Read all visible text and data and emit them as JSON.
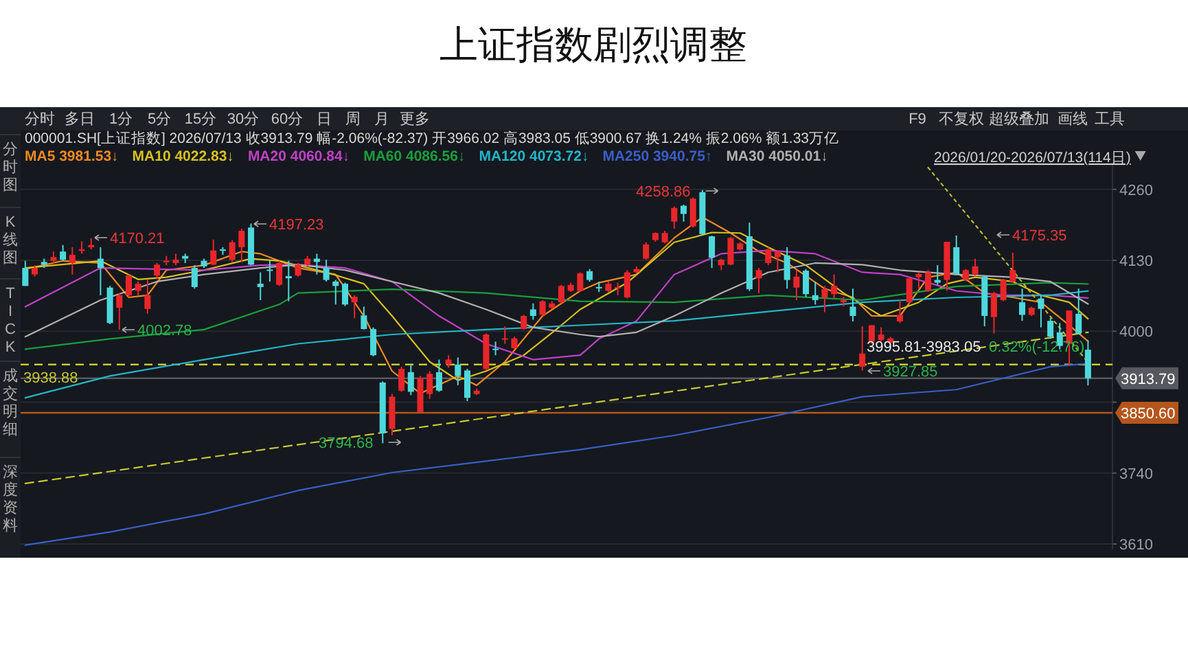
{
  "chart_data": {
    "type": "candlestick",
    "title": "上证指数剧烈调整",
    "categories": [
      null,
      null,
      null,
      null,
      null,
      null,
      null,
      null,
      null,
      null,
      null,
      null,
      null,
      null,
      null,
      null,
      null,
      null,
      null,
      null,
      null,
      null,
      null,
      null,
      null,
      null,
      null,
      null,
      null,
      null,
      null,
      null,
      null,
      null,
      null,
      null,
      null,
      null,
      null,
      null,
      null,
      null,
      null,
      null,
      null,
      null,
      null,
      null,
      null,
      null,
      null,
      null,
      null,
      null,
      null,
      null,
      null,
      null,
      null,
      null,
      null,
      null,
      null,
      null,
      null,
      null,
      null,
      null,
      null,
      null,
      null,
      null,
      null,
      null,
      null,
      null,
      null,
      null,
      null,
      null,
      null,
      null,
      null,
      null,
      null,
      null,
      null,
      null,
      null,
      null,
      null,
      null,
      null,
      null,
      null,
      null,
      null,
      null,
      null,
      null,
      null,
      null,
      null,
      null,
      null,
      null,
      null,
      null,
      null,
      null,
      null,
      null,
      null,
      null
    ],
    "ohlc": [
      [
        4116,
        4129,
        4083,
        4083
      ],
      [
        4104,
        4121,
        4100,
        4116
      ],
      [
        4127,
        4133,
        4116,
        4122
      ],
      [
        4129,
        4146,
        4125,
        4136
      ],
      [
        4146,
        4158,
        4129,
        4131
      ],
      [
        4125,
        4154,
        4104,
        4140
      ],
      [
        4148,
        4165,
        4142,
        4150
      ],
      [
        4154,
        4170.21,
        4150,
        4158
      ],
      [
        4133,
        4154,
        4066,
        4116
      ],
      [
        4080,
        4083,
        4013,
        4015
      ],
      [
        4043,
        4070,
        4002.78,
        4066
      ],
      [
        4066,
        4104,
        4062,
        4102
      ],
      [
        4074,
        4091,
        4066,
        4087
      ],
      [
        4041,
        4094,
        4032,
        4066
      ],
      [
        4102,
        4125,
        4095,
        4122
      ],
      [
        4127,
        4138,
        4121,
        4129
      ],
      [
        4125,
        4142,
        4121,
        4131
      ],
      [
        4138,
        4142,
        4125,
        4133
      ],
      [
        4116,
        4121,
        4078,
        4081
      ],
      [
        4129,
        4133,
        4116,
        4119
      ],
      [
        4122,
        4168,
        4121,
        4148
      ],
      [
        4150,
        4154,
        4140,
        4148
      ],
      [
        4131,
        4167,
        4127,
        4163
      ],
      [
        4154,
        4188,
        4127,
        4184
      ],
      [
        4190,
        4197.23,
        4121,
        4122
      ],
      [
        4087,
        4108,
        4057,
        4081
      ],
      [
        4113,
        4129,
        4091,
        4112
      ],
      [
        4085,
        4129,
        4083,
        4125
      ],
      [
        4101,
        4129,
        4055,
        4097
      ],
      [
        4102,
        4125,
        4100,
        4122
      ],
      [
        4122,
        4138,
        4119,
        4133
      ],
      [
        4133,
        4142,
        4104,
        4127
      ],
      [
        4116,
        4131,
        4091,
        4094
      ],
      [
        4091,
        4094,
        4049,
        4083
      ],
      [
        4087,
        4089,
        4046,
        4049
      ],
      [
        4053,
        4066,
        4024,
        4063
      ],
      [
        4029,
        4045,
        4003,
        4004
      ],
      [
        4004,
        4007,
        3954,
        3956
      ],
      [
        3906,
        3908,
        3794.68,
        3813
      ],
      [
        3821,
        3885,
        3809,
        3880
      ],
      [
        3891,
        3935,
        3889,
        3931
      ],
      [
        3925,
        3939,
        3883,
        3889
      ],
      [
        3852,
        3918,
        3851,
        3914
      ],
      [
        3885,
        3927,
        3876,
        3922
      ],
      [
        3925,
        3948,
        3889,
        3891
      ],
      [
        3939,
        3956,
        3933,
        3948
      ],
      [
        3939,
        3952,
        3901,
        3918
      ],
      [
        3928,
        3931,
        3872,
        3878
      ],
      [
        3885,
        3895,
        3883,
        3891
      ],
      [
        3931,
        3996,
        3928,
        3994
      ],
      [
        3968,
        3981,
        3956,
        3967
      ],
      [
        3985,
        4009,
        3977,
        3987
      ],
      [
        3969,
        3990,
        3967,
        3987
      ],
      [
        4004,
        4030,
        4003,
        4028
      ],
      [
        4040,
        4051,
        4021,
        4028
      ],
      [
        4030,
        4057,
        4028,
        4055
      ],
      [
        4043,
        4055,
        4040,
        4051
      ],
      [
        4053,
        4085,
        4051,
        4083
      ],
      [
        4074,
        4089,
        4072,
        4085
      ],
      [
        4074,
        4108,
        4072,
        4106
      ],
      [
        4110,
        4114,
        4091,
        4094
      ],
      [
        4081,
        4091,
        4072,
        4080
      ],
      [
        4074,
        4091,
        4072,
        4087
      ],
      [
        4079,
        4089,
        4066,
        4081
      ],
      [
        4062,
        4112,
        4060,
        4108
      ],
      [
        4108,
        4119,
        4106,
        4114
      ],
      [
        4133,
        4163,
        4131,
        4159
      ],
      [
        4167,
        4181,
        4164,
        4180
      ],
      [
        4163,
        4184,
        4161,
        4180
      ],
      [
        4201,
        4229,
        4188,
        4226
      ],
      [
        4230,
        4232,
        4201,
        4215
      ],
      [
        4192,
        4245,
        4190,
        4243
      ],
      [
        4255,
        4258.86,
        4176,
        4178
      ],
      [
        4174,
        4175,
        4116,
        4135
      ],
      [
        4121,
        4133,
        4112,
        4131
      ],
      [
        4122,
        4173,
        4121,
        4171
      ],
      [
        4150,
        4163,
        4148,
        4161
      ],
      [
        4174,
        4199,
        4074,
        4077
      ],
      [
        4097,
        4116,
        4070,
        4112
      ],
      [
        4125,
        4154,
        4121,
        4150
      ],
      [
        4136,
        4148,
        4108,
        4146
      ],
      [
        4139,
        4154,
        4078,
        4094
      ],
      [
        4080,
        4112,
        4057,
        4100
      ],
      [
        4111,
        4114,
        4063,
        4068
      ],
      [
        4066,
        4091,
        4049,
        4057
      ],
      [
        4062,
        4083,
        4035,
        4077
      ],
      [
        4068,
        4104,
        4060,
        4083
      ],
      [
        4053,
        4063,
        4046,
        4057
      ],
      [
        4045,
        4078,
        4018,
        4028
      ],
      [
        3935,
        4009,
        3927.85,
        3959
      ],
      [
        3981,
        4011,
        3977,
        4011
      ],
      [
        3984,
        4007,
        3981,
        3994
      ],
      [
        3979,
        3990,
        3977,
        3987
      ],
      [
        4018,
        4057,
        4015,
        4030
      ],
      [
        4053,
        4099,
        4051,
        4097
      ],
      [
        4099,
        4108,
        4078,
        4105
      ],
      [
        4074,
        4112,
        4072,
        4108
      ],
      [
        4094,
        4121,
        4085,
        4089
      ],
      [
        4094,
        4164,
        4074,
        4164
      ],
      [
        4154,
        4175.35,
        4104,
        4105
      ],
      [
        4094,
        4114,
        4092,
        4112
      ],
      [
        4104,
        4133,
        4102,
        4119
      ],
      [
        4100,
        4102,
        4009,
        4028
      ],
      [
        4026,
        4072,
        3996,
        4070
      ],
      [
        4057,
        4096,
        4055,
        4094
      ],
      [
        4091,
        4144,
        4089,
        4112
      ],
      [
        4053,
        4078,
        4019,
        4030
      ],
      [
        4030,
        4045,
        4028,
        4043
      ],
      [
        4060,
        4066,
        4007,
        4041
      ],
      [
        4019,
        4024,
        3986,
        3990
      ],
      [
        3998,
        4015,
        3967,
        3973
      ],
      [
        3977,
        4038,
        3939,
        4038
      ],
      [
        4032,
        4078,
        3994,
        3996
      ],
      [
        3966.02,
        3983.05,
        3900.67,
        3913.79
      ]
    ],
    "colors": [
      "#4ed8dc",
      "#e8262a",
      "#4ed8dc",
      "#e8262a",
      "#4ed8dc",
      "#e8262a",
      "#e8262a",
      "#e8262a",
      "#4ed8dc",
      "#4ed8dc",
      "#e8262a",
      "#e8262a",
      "#e8262a",
      "#e8262a",
      "#e8262a",
      "#e8262a",
      "#e8262a",
      "#4ed8dc",
      "#4ed8dc",
      "#4ed8dc",
      "#e8262a",
      "#4ed8dc",
      "#e8262a",
      "#e8262a",
      "#4ed8dc",
      "#4ed8dc",
      "#4ed8dc",
      "#e8262a",
      "#4ed8dc",
      "#e8262a",
      "#e8262a",
      "#4ed8dc",
      "#4ed8dc",
      "#4ed8dc",
      "#4ed8dc",
      "#e8262a",
      "#4ed8dc",
      "#4ed8dc",
      "#4ed8dc",
      "#e8262a",
      "#e8262a",
      "#4ed8dc",
      "#e8262a",
      "#e8262a",
      "#4ed8dc",
      "#e8262a",
      "#4ed8dc",
      "#4ed8dc",
      "#e8262a",
      "#e8262a",
      "#4ed8dc",
      "#e8262a",
      "#e8262a",
      "#e8262a",
      "#4ed8dc",
      "#e8262a",
      "#e8262a",
      "#e8262a",
      "#e8262a",
      "#e8262a",
      "#4ed8dc",
      "#4ed8dc",
      "#e8262a",
      "#e8262a",
      "#e8262a",
      "#e8262a",
      "#e8262a",
      "#e8262a",
      "#e8262a",
      "#e8262a",
      "#4ed8dc",
      "#e8262a",
      "#4ed8dc",
      "#4ed8dc",
      "#e8262a",
      "#e8262a",
      "#e8262a",
      "#4ed8dc",
      "#e8262a",
      "#e8262a",
      "#e8262a",
      "#4ed8dc",
      "#e8262a",
      "#4ed8dc",
      "#4ed8dc",
      "#e8262a",
      "#e8262a",
      "#e8262a",
      "#4ed8dc",
      "#e8262a",
      "#e8262a",
      "#e8262a",
      "#e8262a",
      "#e8262a",
      "#e8262a",
      "#e8262a",
      "#e8262a",
      "#4ed8dc",
      "#e8262a",
      "#4ed8dc",
      "#e8262a",
      "#e8262a",
      "#4ed8dc",
      "#e8262a",
      "#e8262a",
      "#e8262a",
      "#4ed8dc",
      "#e8262a",
      "#4ed8dc",
      "#4ed8dc",
      "#4ed8dc",
      "#e8262a",
      "#4ed8dc",
      "#4ed8dc"
    ],
    "series": [
      {
        "type": "line",
        "name": "MA5 3981.53↓",
        "color": "#f08a24",
        "values": [
          4114,
          null,
          null,
          null,
          4129,
          null,
          null,
          null,
          4125,
          null,
          null,
          4062,
          null,
          4066,
          null,
          4112,
          null,
          null,
          null,
          4121,
          null,
          null,
          null,
          4146,
          null,
          4142,
          null,
          null,
          null,
          4116,
          null,
          null,
          null,
          4104,
          null,
          null,
          4028,
          null,
          null,
          3927,
          null,
          null,
          3886,
          null,
          null,
          null,
          3918,
          null,
          3901,
          null,
          null,
          3944,
          null,
          null,
          null,
          4028,
          null,
          null,
          null,
          4074,
          null,
          4089,
          null,
          null,
          null,
          4104,
          null,
          null,
          null,
          4171,
          null,
          null,
          4209,
          null,
          null,
          4180,
          null,
          null,
          4146,
          null,
          null,
          4125,
          null,
          null,
          null,
          4078,
          null,
          null,
          4062,
          null,
          4028,
          null,
          null,
          4028,
          null,
          null,
          4099,
          null,
          null,
          4108,
          null,
          null,
          4070,
          null,
          null,
          4062,
          null,
          null,
          4053,
          null,
          null,
          4011,
          null,
          3981.53
        ]
      },
      {
        "type": "line",
        "name": "MA10 4022.83↓",
        "color": "#d8c020",
        "values": [
          4116,
          null,
          null,
          null,
          null,
          null,
          null,
          null,
          4129,
          null,
          null,
          null,
          4095,
          null,
          null,
          4099,
          null,
          null,
          null,
          4112,
          null,
          null,
          null,
          null,
          4133,
          null,
          null,
          4129,
          null,
          null,
          null,
          null,
          4108,
          null,
          null,
          null,
          4087,
          null,
          null,
          4028,
          null,
          null,
          null,
          3944,
          null,
          null,
          3910,
          null,
          null,
          3927,
          null,
          null,
          null,
          3956,
          null,
          null,
          null,
          4011,
          null,
          4040,
          null,
          null,
          null,
          null,
          4089,
          null,
          null,
          null,
          null,
          4163,
          null,
          null,
          null,
          4181,
          null,
          null,
          4180,
          null,
          null,
          4154,
          null,
          null,
          null,
          4121,
          null,
          null,
          null,
          4070,
          null,
          4049,
          null,
          4028,
          null,
          null,
          null,
          4053,
          null,
          null,
          4087,
          null,
          null,
          4099,
          null,
          null,
          null,
          4091,
          null,
          null,
          4066,
          null,
          null,
          4053,
          null,
          4022.83
        ]
      },
      {
        "type": "line",
        "name": "MA20 4060.84↓",
        "color": "#c040c8",
        "values": [
          4045,
          null,
          null,
          null,
          null,
          null,
          null,
          null,
          4116,
          null,
          null,
          null,
          null,
          null,
          null,
          null,
          null,
          null,
          null,
          4112,
          null,
          null,
          null,
          null,
          null,
          4121,
          null,
          null,
          null,
          4122,
          null,
          null,
          null,
          null,
          4116,
          null,
          null,
          null,
          null,
          4091,
          null,
          null,
          null,
          null,
          4028,
          null,
          null,
          null,
          null,
          3977,
          null,
          null,
          null,
          null,
          3948,
          null,
          null,
          null,
          null,
          3956,
          null,
          3986,
          null,
          null,
          null,
          4019,
          null,
          null,
          null,
          4104,
          null,
          null,
          null,
          null,
          4142,
          null,
          null,
          null,
          null,
          4148,
          null,
          null,
          null,
          null,
          4142,
          null,
          null,
          null,
          null,
          4108,
          null,
          null,
          null,
          4104,
          null,
          null,
          null,
          null,
          null,
          4074,
          null,
          null,
          null,
          null,
          4066,
          null,
          null,
          null,
          null,
          4066,
          null,
          null,
          null,
          4060.84
        ]
      },
      {
        "type": "line",
        "name": "MA60 4086.56↓",
        "color": "#1a9e3c",
        "values": [
          3967,
          null,
          null,
          null,
          null,
          null,
          null,
          null,
          null,
          3986,
          null,
          null,
          null,
          null,
          null,
          null,
          null,
          null,
          null,
          4003,
          null,
          null,
          null,
          null,
          null,
          null,
          null,
          4049,
          null,
          4070,
          null,
          null,
          null,
          null,
          null,
          null,
          null,
          null,
          null,
          4077,
          null,
          null,
          null,
          null,
          null,
          null,
          null,
          null,
          null,
          4070,
          null,
          null,
          null,
          null,
          null,
          null,
          null,
          null,
          null,
          4055,
          null,
          null,
          null,
          null,
          null,
          null,
          null,
          null,
          null,
          4053,
          null,
          null,
          null,
          null,
          null,
          null,
          null,
          null,
          null,
          4066,
          null,
          null,
          null,
          null,
          null,
          null,
          null,
          null,
          null,
          4057,
          null,
          null,
          null,
          null,
          null,
          null,
          null,
          null,
          null,
          4082,
          null,
          null,
          null,
          null,
          null,
          null,
          null,
          null,
          null,
          4089,
          null,
          null,
          null,
          4086.56
        ]
      },
      {
        "type": "line",
        "name": "MA120 4073.72↓",
        "color": "#22b5c8",
        "values": [
          3878,
          null,
          null,
          null,
          null,
          null,
          null,
          null,
          null,
          3918,
          null,
          null,
          null,
          null,
          null,
          null,
          null,
          null,
          null,
          3948,
          null,
          null,
          null,
          null,
          null,
          null,
          null,
          null,
          null,
          3977,
          null,
          null,
          null,
          null,
          null,
          null,
          null,
          null,
          null,
          3994,
          null,
          null,
          null,
          null,
          null,
          null,
          null,
          null,
          null,
          4003,
          null,
          null,
          null,
          null,
          null,
          null,
          null,
          null,
          null,
          4011,
          null,
          null,
          null,
          null,
          null,
          null,
          null,
          null,
          null,
          4019,
          null,
          null,
          null,
          null,
          null,
          null,
          null,
          null,
          null,
          4036,
          null,
          null,
          null,
          null,
          null,
          null,
          null,
          null,
          null,
          4053,
          null,
          null,
          null,
          null,
          null,
          null,
          null,
          null,
          null,
          4062,
          null,
          null,
          null,
          null,
          null,
          null,
          null,
          null,
          null,
          4066,
          null,
          null,
          null,
          4073.72
        ]
      },
      {
        "type": "line",
        "name": "MA250 3940.75↑",
        "color": "#3a5ec8",
        "values": [
          3608,
          null,
          null,
          null,
          null,
          null,
          null,
          null,
          null,
          3632,
          null,
          null,
          null,
          null,
          null,
          null,
          null,
          null,
          null,
          3665,
          null,
          null,
          null,
          null,
          null,
          null,
          null,
          null,
          null,
          3708,
          null,
          null,
          null,
          null,
          null,
          null,
          null,
          null,
          null,
          3741,
          null,
          null,
          null,
          null,
          null,
          null,
          null,
          null,
          null,
          3762,
          null,
          null,
          null,
          null,
          null,
          null,
          null,
          null,
          null,
          3783,
          null,
          null,
          null,
          null,
          null,
          null,
          null,
          null,
          null,
          3809,
          null,
          null,
          null,
          null,
          null,
          null,
          null,
          null,
          null,
          3842,
          null,
          null,
          null,
          null,
          null,
          null,
          null,
          null,
          null,
          3880,
          null,
          null,
          null,
          null,
          null,
          null,
          null,
          null,
          null,
          3893,
          null,
          null,
          null,
          null,
          null,
          null,
          null,
          null,
          null,
          3935,
          null,
          null,
          null,
          3940.75
        ]
      },
      {
        "type": "line",
        "name": "MA30 4050.01↓",
        "color": "#b0b0b0",
        "values": [
          3990,
          null,
          null,
          null,
          null,
          null,
          null,
          null,
          4057,
          null,
          null,
          null,
          null,
          null,
          4091,
          null,
          null,
          null,
          null,
          4104,
          null,
          null,
          null,
          null,
          null,
          4116,
          null,
          null,
          null,
          4122,
          null,
          null,
          null,
          null,
          4112,
          null,
          null,
          null,
          null,
          4091,
          null,
          null,
          null,
          null,
          4070,
          null,
          null,
          null,
          null,
          4040,
          null,
          null,
          null,
          null,
          4007,
          null,
          null,
          null,
          null,
          3994,
          null,
          3990,
          null,
          null,
          null,
          3998,
          null,
          null,
          null,
          4028,
          null,
          null,
          null,
          null,
          4070,
          null,
          null,
          null,
          null,
          4108,
          null,
          null,
          null,
          null,
          4125,
          null,
          null,
          null,
          null,
          4122,
          null,
          null,
          null,
          4112,
          null,
          null,
          null,
          null,
          null,
          4104,
          null,
          null,
          null,
          null,
          null,
          4099,
          null,
          null,
          null,
          4091,
          null,
          null,
          null,
          4050.01
        ]
      },
      {
        "type": "line",
        "color": "#c8c832",
        "line_style": "dashed",
        "values": [
          3721,
          null,
          null,
          null,
          null,
          null,
          null,
          null,
          null,
          null,
          null,
          null,
          null,
          null,
          null,
          null,
          null,
          null,
          null,
          null,
          null,
          null,
          null,
          null,
          null,
          null,
          null,
          null,
          null,
          null,
          null,
          null,
          null,
          null,
          null,
          null,
          null,
          null,
          null,
          null,
          null,
          null,
          null,
          null,
          null,
          null,
          null,
          null,
          null,
          null,
          null,
          null,
          null,
          null,
          null,
          null,
          null,
          null,
          null,
          null,
          null,
          null,
          null,
          null,
          null,
          null,
          null,
          null,
          null,
          null,
          null,
          null,
          null,
          null,
          null,
          null,
          null,
          null,
          null,
          null,
          null,
          null,
          null,
          null,
          null,
          null,
          null,
          null,
          null,
          null,
          null,
          null,
          null,
          null,
          null,
          null,
          null,
          null,
          null,
          null,
          null,
          null,
          null,
          null,
          null,
          null,
          null,
          null,
          null,
          null,
          null,
          null,
          null,
          3998
        ]
      },
      {
        "type": "line",
        "color": "#b8b832",
        "line_style": "dotted",
        "values": [
          null,
          null,
          null,
          null,
          null,
          null,
          null,
          null,
          null,
          null,
          null,
          null,
          null,
          null,
          null,
          null,
          null,
          null,
          null,
          null,
          null,
          null,
          null,
          null,
          null,
          null,
          null,
          null,
          null,
          null,
          null,
          null,
          null,
          null,
          null,
          null,
          null,
          null,
          null,
          null,
          null,
          null,
          null,
          null,
          null,
          null,
          null,
          null,
          null,
          null,
          null,
          null,
          null,
          null,
          null,
          null,
          null,
          null,
          null,
          null,
          null,
          null,
          null,
          null,
          null,
          null,
          null,
          null,
          null,
          null,
          null,
          null,
          null,
          null,
          null,
          null,
          null,
          null,
          null,
          null,
          null,
          null,
          null,
          null,
          null,
          null,
          null,
          null,
          null,
          null,
          null,
          null,
          null,
          null,
          null,
          null,
          4300,
          null,
          null,
          null,
          null,
          null,
          null,
          null,
          null,
          null,
          null,
          null,
          null,
          null,
          null,
          null,
          null,
          3943
        ]
      }
    ],
    "ref_lines": [
      {
        "axis": "y",
        "value": 3938.88,
        "label": "3938.88",
        "color": "#c8c832",
        "line_style": "dashed"
      },
      {
        "axis": "y",
        "value": 3913.79,
        "label": "3913.79",
        "color": "#55585e",
        "line_style": "solid"
      },
      {
        "axis": "y",
        "value": 3850.6,
        "label": "3850.60",
        "color": "#b5561c",
        "line_style": "solid"
      }
    ],
    "ylim": [
      3600,
      4310
    ],
    "yticks": [
      4260,
      4130,
      4000,
      {
        "value": 3870,
        "label": null
      },
      3740,
      3610
    ],
    "tick_labels": "y",
    "grid": "y",
    "legend": "top left",
    "annotations": [
      "4170.21",
      "4197.23",
      "4002.78",
      "3794.68",
      "4258.86",
      "4175.35",
      "3927.85",
      "3995.81-3983.05",
      "0.32%(-12.76)",
      "分时",
      "多日",
      "1分",
      "5分",
      "15分",
      "30分",
      "60分",
      "日",
      "周",
      "月",
      "更多",
      "F9",
      "不复权",
      "超级叠加",
      "画线",
      "工具",
      "分时图",
      "K线图",
      "TICK",
      "成交明细",
      "深度资料",
      "000001.SH[上证指数]  2026/07/13  收3913.79  幅-2.06%(-82.37)  开3966.02  高3983.05  低3900.67  换1.24%  振2.06%  额1.33万亿",
      "2026/01/20-2026/07/13(114日)"
    ]
  }
}
